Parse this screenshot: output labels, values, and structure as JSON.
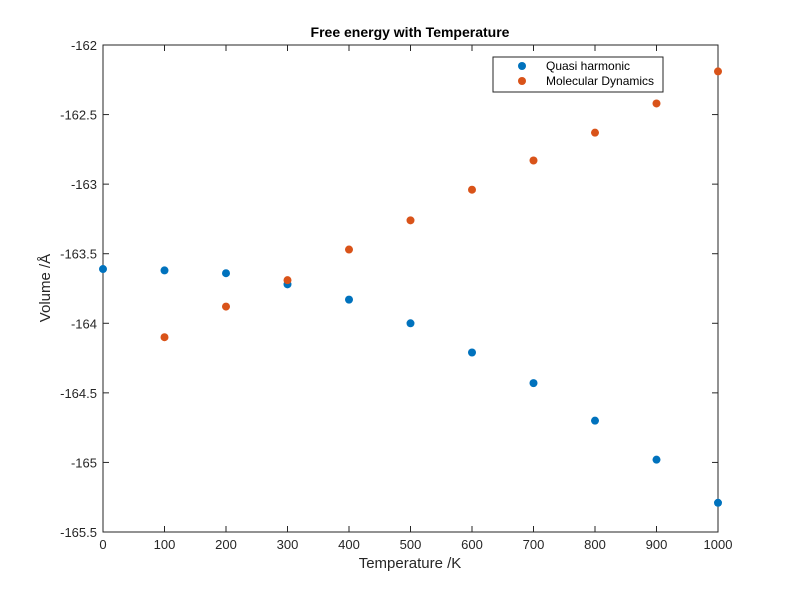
{
  "chart_data": {
    "type": "scatter",
    "title": "Free energy with Temperature",
    "xlabel": "Temperature /K",
    "ylabel": "Volume /Å",
    "xlim": [
      0,
      1000
    ],
    "ylim": [
      -165.5,
      -162
    ],
    "xticks": [
      0,
      100,
      200,
      300,
      400,
      500,
      600,
      700,
      800,
      900,
      1000
    ],
    "yticks": [
      -162,
      -162.5,
      -163,
      -163.5,
      -164,
      -164.5,
      -165,
      -165.5
    ],
    "grid": false,
    "legend_position": "top-right",
    "series": [
      {
        "name": "Quasi harmonic",
        "color": "#0072BD",
        "x": [
          0,
          100,
          200,
          300,
          400,
          500,
          600,
          700,
          800,
          900,
          1000
        ],
        "y": [
          -163.61,
          -163.62,
          -163.64,
          -163.72,
          -163.83,
          -164.0,
          -164.21,
          -164.43,
          -164.7,
          -164.98,
          -165.29
        ]
      },
      {
        "name": "Molecular Dynamics",
        "color": "#D95319",
        "x": [
          100,
          200,
          300,
          400,
          500,
          600,
          700,
          800,
          900,
          1000
        ],
        "y": [
          -164.1,
          -163.88,
          -163.69,
          -163.47,
          -163.26,
          -163.04,
          -162.83,
          -162.63,
          -162.42,
          -162.19
        ]
      }
    ]
  }
}
